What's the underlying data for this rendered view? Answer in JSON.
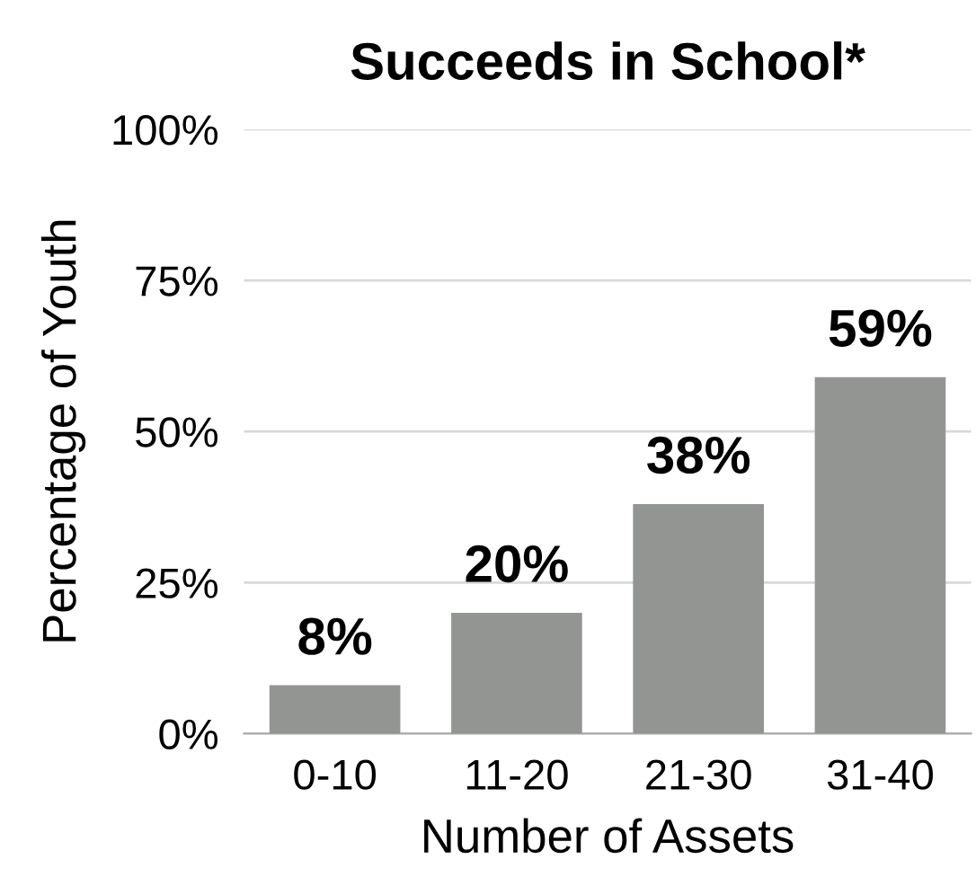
{
  "chart_data": {
    "type": "bar",
    "title": "Succeeds in School*",
    "xlabel": "Number of Assets",
    "ylabel": "Percentage of Youth",
    "categories": [
      "0-10",
      "11-20",
      "21-30",
      "31-40"
    ],
    "values": [
      8,
      20,
      38,
      59
    ],
    "value_labels": [
      "8%",
      "20%",
      "38%",
      "59%"
    ],
    "color": "#929592",
    "ylim": [
      0,
      100
    ],
    "yticks": [
      {
        "value": 0,
        "label": "0%"
      },
      {
        "value": 25,
        "label": "25%"
      },
      {
        "value": 50,
        "label": "50%"
      },
      {
        "value": 75,
        "label": "75%"
      },
      {
        "value": 100,
        "label": "100%"
      }
    ],
    "grid": "y",
    "legend": false
  }
}
